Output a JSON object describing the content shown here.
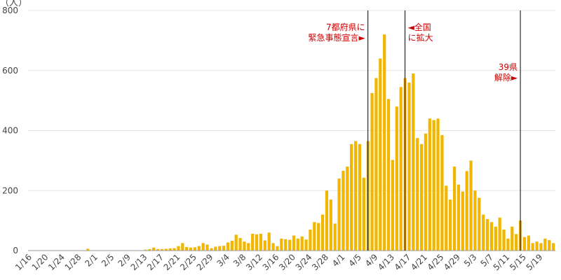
{
  "chart_data": {
    "type": "bar",
    "ylabel": "（人）",
    "ylim": [
      0,
      800
    ],
    "yticks": [
      0,
      200,
      400,
      600,
      800
    ],
    "grid": true,
    "colors": {
      "bar": "#f2b600",
      "grid": "#e6e6e6",
      "annotation": "#cc0000",
      "event_line": "#000000"
    },
    "xtick_labels": [
      "1/16",
      "1/20",
      "1/24",
      "1/28",
      "2/1",
      "2/5",
      "2/9",
      "2/13",
      "2/17",
      "2/21",
      "2/25",
      "2/29",
      "3/4",
      "3/8",
      "3/12",
      "3/16",
      "3/20",
      "3/24",
      "3/28",
      "4/1",
      "4/5",
      "4/9",
      "4/13",
      "4/17",
      "4/21",
      "4/25",
      "4/29",
      "5/3",
      "5/7",
      "5/11",
      "5/15",
      "5/19"
    ],
    "categories": [
      "1/16",
      "1/17",
      "1/18",
      "1/19",
      "1/20",
      "1/21",
      "1/22",
      "1/23",
      "1/24",
      "1/25",
      "1/26",
      "1/27",
      "1/28",
      "1/29",
      "1/30",
      "1/31",
      "2/1",
      "2/2",
      "2/3",
      "2/4",
      "2/5",
      "2/6",
      "2/7",
      "2/8",
      "2/9",
      "2/10",
      "2/11",
      "2/12",
      "2/13",
      "2/14",
      "2/15",
      "2/16",
      "2/17",
      "2/18",
      "2/19",
      "2/20",
      "2/21",
      "2/22",
      "2/23",
      "2/24",
      "2/25",
      "2/26",
      "2/27",
      "2/28",
      "2/29",
      "3/1",
      "3/2",
      "3/3",
      "3/4",
      "3/5",
      "3/6",
      "3/7",
      "3/8",
      "3/9",
      "3/10",
      "3/11",
      "3/12",
      "3/13",
      "3/14",
      "3/15",
      "3/16",
      "3/17",
      "3/18",
      "3/19",
      "3/20",
      "3/21",
      "3/22",
      "3/23",
      "3/24",
      "3/25",
      "3/26",
      "3/27",
      "3/28",
      "3/29",
      "3/30",
      "3/31",
      "4/1",
      "4/2",
      "4/3",
      "4/4",
      "4/5",
      "4/6",
      "4/7",
      "4/8",
      "4/9",
      "4/10",
      "4/11",
      "4/12",
      "4/13",
      "4/14",
      "4/15",
      "4/16",
      "4/17",
      "4/18",
      "4/19",
      "4/20",
      "4/21",
      "4/22",
      "4/23",
      "4/24",
      "4/25",
      "4/26",
      "4/27",
      "4/28",
      "4/29",
      "4/30",
      "5/1",
      "5/2",
      "5/3",
      "5/4",
      "5/5",
      "5/6",
      "5/7",
      "5/8",
      "5/9",
      "5/10",
      "5/11",
      "5/12",
      "5/13",
      "5/14",
      "5/15",
      "5/16",
      "5/17",
      "5/18",
      "5/19",
      "5/20",
      "5/21",
      "5/22"
    ],
    "values": [
      1,
      0,
      0,
      0,
      0,
      0,
      0,
      0,
      0,
      1,
      0,
      0,
      1,
      1,
      6,
      0,
      1,
      1,
      0,
      0,
      0,
      0,
      0,
      0,
      0,
      1,
      1,
      1,
      3,
      5,
      10,
      5,
      5,
      6,
      7,
      8,
      15,
      25,
      12,
      10,
      11,
      15,
      25,
      20,
      8,
      13,
      15,
      16,
      27,
      33,
      53,
      42,
      30,
      25,
      56,
      54,
      56,
      34,
      60,
      25,
      15,
      40,
      38,
      36,
      50,
      40,
      47,
      37,
      70,
      95,
      92,
      120,
      200,
      170,
      90,
      240,
      266,
      280,
      355,
      365,
      355,
      243,
      365,
      525,
      575,
      640,
      720,
      505,
      302,
      480,
      545,
      575,
      560,
      590,
      375,
      355,
      390,
      440,
      435,
      440,
      385,
      216,
      170,
      280,
      220,
      197,
      265,
      300,
      200,
      176,
      120,
      105,
      95,
      80,
      110,
      70,
      40,
      80,
      55,
      100,
      45,
      50,
      25,
      30,
      25,
      40,
      35,
      25
    ],
    "events": [
      {
        "date": "4/7",
        "label_lines": [
          "7都府県に",
          "緊急事態宣言►"
        ],
        "side": "left"
      },
      {
        "date": "4/16",
        "label_lines": [
          "◄全国",
          "に拡大"
        ],
        "side": "right"
      },
      {
        "date": "5/14",
        "label_lines": [
          "39県",
          "解除►"
        ],
        "side": "left"
      }
    ]
  }
}
